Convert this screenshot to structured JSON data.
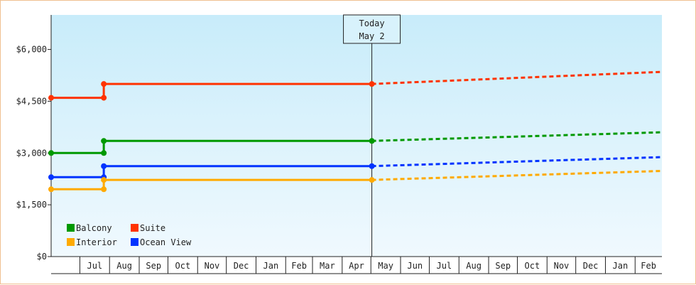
{
  "chart_data": {
    "type": "line",
    "y_axis": {
      "ticks": [
        {
          "value": 0,
          "label": "$0"
        },
        {
          "value": 1500,
          "label": "$1,500"
        },
        {
          "value": 3000,
          "label": "$3,000"
        },
        {
          "value": 4500,
          "label": "$4,500"
        },
        {
          "value": 6000,
          "label": "$6,000"
        }
      ],
      "ylim": [
        0,
        7000
      ]
    },
    "x_axis": {
      "months": [
        "Jul",
        "Aug",
        "Sep",
        "Oct",
        "Nov",
        "Dec",
        "Jan",
        "Feb",
        "Mar",
        "Apr",
        "May",
        "Jun",
        "Jul",
        "Aug",
        "Sep",
        "Oct",
        "Nov",
        "Dec",
        "Jan",
        "Feb"
      ],
      "range": [
        "2016-06-01",
        "2018-02-28"
      ]
    },
    "today": {
      "line1": "Today",
      "line2": "May 2",
      "date": "2017-05-02"
    },
    "series": [
      {
        "name": "Suite",
        "color": "#ff3300",
        "points": [
          {
            "x": "2016-06-01",
            "y": 4600
          },
          {
            "x": "2016-07-26",
            "y": 4600
          },
          {
            "x": "2016-07-26",
            "y": 5000
          },
          {
            "x": "2017-05-02",
            "y": 5000
          }
        ],
        "forecast": [
          {
            "x": "2017-05-02",
            "y": 5000
          },
          {
            "x": "2018-02-28",
            "y": 5350
          }
        ]
      },
      {
        "name": "Balcony",
        "color": "#009900",
        "points": [
          {
            "x": "2016-06-01",
            "y": 3000
          },
          {
            "x": "2016-07-26",
            "y": 3000
          },
          {
            "x": "2016-07-26",
            "y": 3350
          },
          {
            "x": "2017-05-02",
            "y": 3350
          }
        ],
        "forecast": [
          {
            "x": "2017-05-02",
            "y": 3350
          },
          {
            "x": "2018-02-28",
            "y": 3600
          }
        ]
      },
      {
        "name": "Ocean View",
        "color": "#0033ff",
        "points": [
          {
            "x": "2016-06-01",
            "y": 2300
          },
          {
            "x": "2016-07-26",
            "y": 2300
          },
          {
            "x": "2016-07-26",
            "y": 2620
          },
          {
            "x": "2017-05-02",
            "y": 2620
          }
        ],
        "forecast": [
          {
            "x": "2017-05-02",
            "y": 2620
          },
          {
            "x": "2018-02-28",
            "y": 2880
          }
        ]
      },
      {
        "name": "Interior",
        "color": "#ffaa00",
        "points": [
          {
            "x": "2016-06-01",
            "y": 1950
          },
          {
            "x": "2016-07-26",
            "y": 1950
          },
          {
            "x": "2016-07-26",
            "y": 2220
          },
          {
            "x": "2017-05-02",
            "y": 2220
          }
        ],
        "forecast": [
          {
            "x": "2017-05-02",
            "y": 2220
          },
          {
            "x": "2018-02-28",
            "y": 2480
          }
        ]
      }
    ],
    "legend": {
      "placement": "bottom-left",
      "order": [
        "Balcony",
        "Suite",
        "Interior",
        "Ocean View"
      ]
    },
    "background": {
      "top": "#c8ecfa",
      "bottom": "#f0f9fe"
    }
  }
}
